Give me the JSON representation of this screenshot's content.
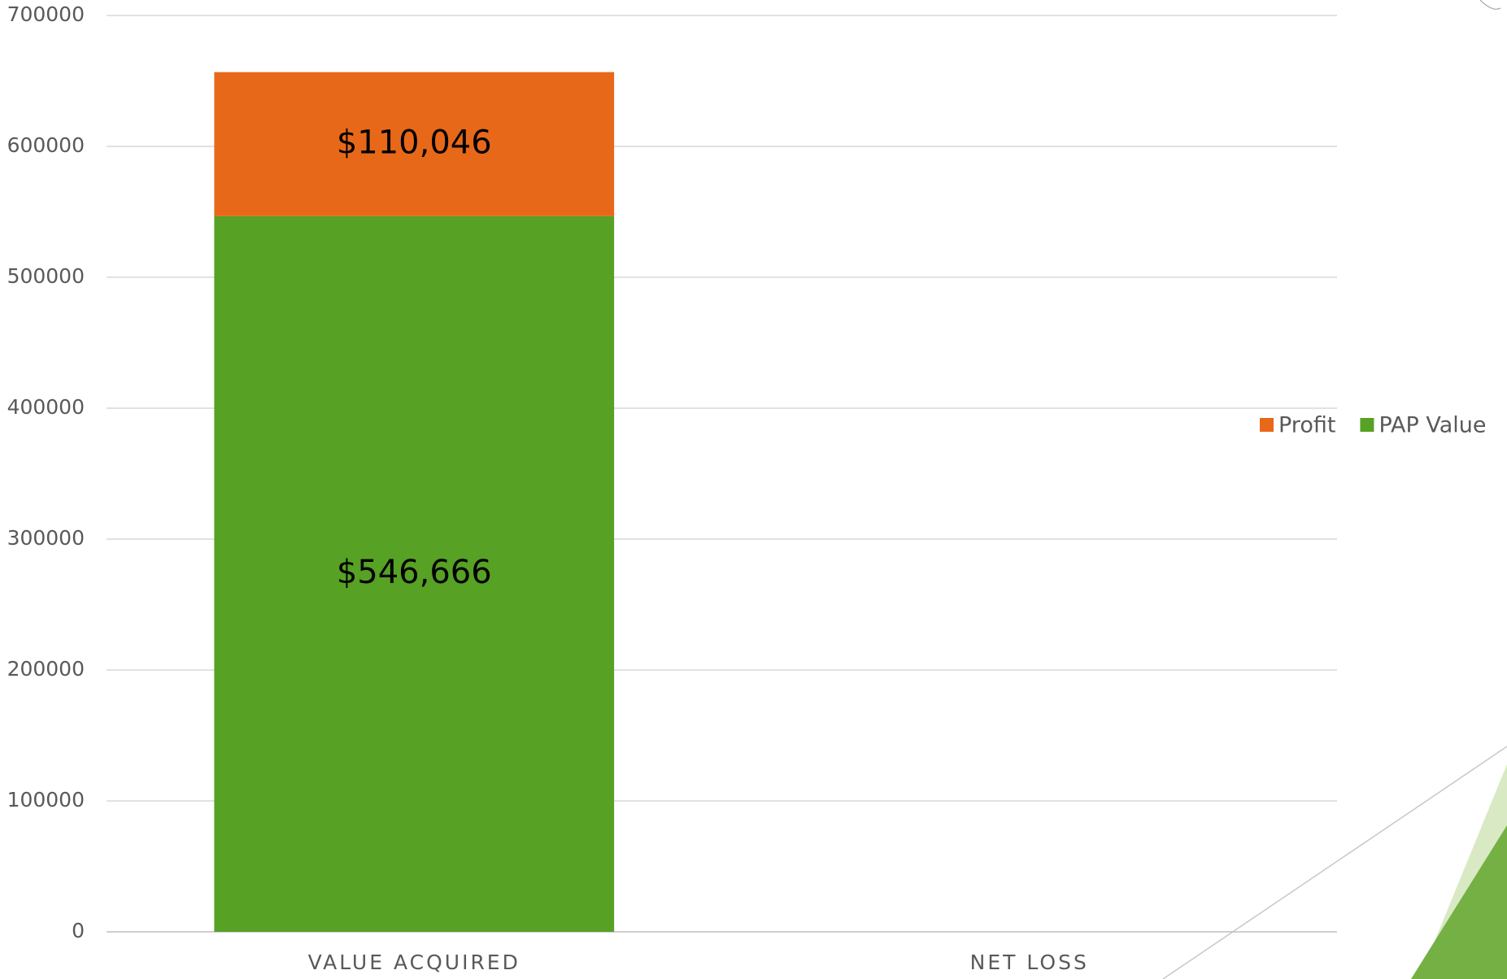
{
  "chart_data": {
    "type": "stacked_bar",
    "categories": [
      "VALUE ACQUIRED",
      "NET LOSS"
    ],
    "series": [
      {
        "name": "PAP Value",
        "color": "#57a125",
        "values": [
          546666,
          null
        ],
        "value_labels": [
          "$546,666",
          null
        ]
      },
      {
        "name": "Profit",
        "color": "#e8681a",
        "values": [
          110046,
          null
        ],
        "value_labels": [
          "$110,046",
          null
        ]
      }
    ],
    "ylim": [
      0,
      700000
    ],
    "yticks": [
      0,
      100000,
      200000,
      300000,
      400000,
      500000,
      600000,
      700000
    ],
    "grid": true,
    "legend": "right"
  }
}
